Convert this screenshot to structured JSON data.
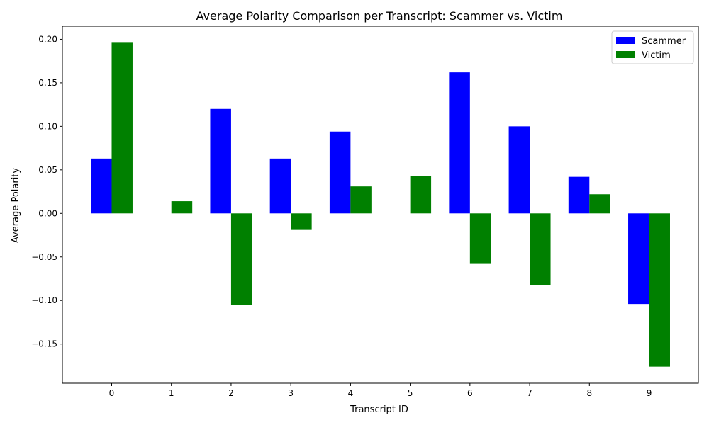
{
  "chart_data": {
    "type": "bar",
    "title": "Average Polarity Comparison per Transcript: Scammer vs. Victim",
    "xlabel": "Transcript ID",
    "ylabel": "Average Polarity",
    "categories": [
      "0",
      "1",
      "2",
      "3",
      "4",
      "5",
      "6",
      "7",
      "8",
      "9"
    ],
    "ylim": [
      -0.195,
      0.215
    ],
    "yticks": [
      -0.15,
      -0.1,
      -0.05,
      0.0,
      0.05,
      0.1,
      0.15,
      0.2
    ],
    "ytick_labels": [
      "−0.15",
      "−0.10",
      "−0.05",
      "0.00",
      "0.05",
      "0.10",
      "0.15",
      "0.20"
    ],
    "grid": false,
    "legend_position": "top-right",
    "series": [
      {
        "name": "Scammer",
        "color": "#0000ff",
        "values": [
          0.063,
          0.0,
          0.12,
          0.063,
          0.094,
          0.0,
          0.162,
          0.1,
          0.042,
          -0.104
        ]
      },
      {
        "name": "Victim",
        "color": "#008000",
        "values": [
          0.196,
          0.014,
          -0.105,
          -0.019,
          0.031,
          0.043,
          -0.058,
          -0.082,
          0.022,
          -0.176
        ]
      }
    ]
  }
}
